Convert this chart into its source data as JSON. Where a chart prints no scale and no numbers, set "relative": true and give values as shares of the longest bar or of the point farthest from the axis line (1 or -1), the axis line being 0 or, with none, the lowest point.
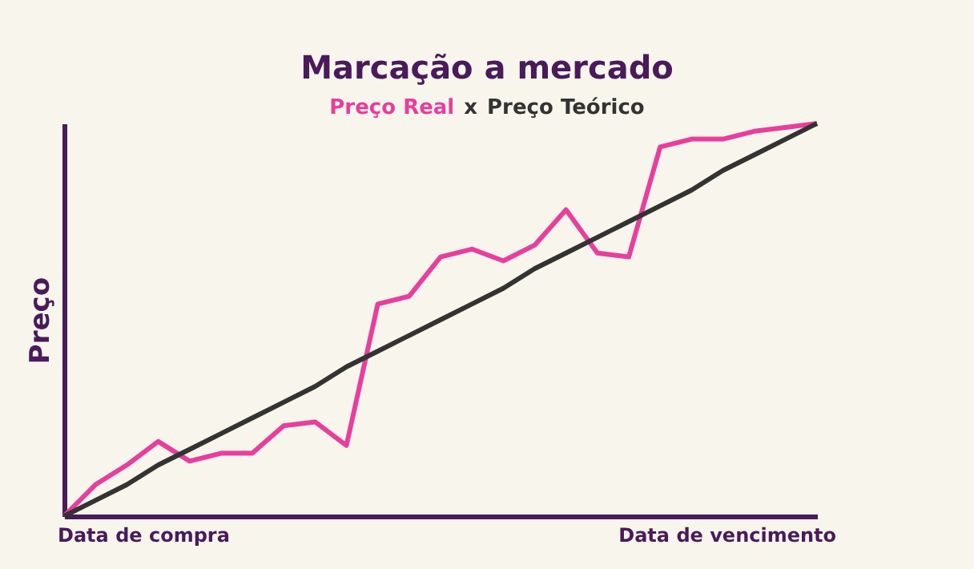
{
  "chart_data": {
    "type": "line",
    "title": "Marcação a mercado",
    "annotations": [
      "x",
      "Data de compra",
      "Data de vencimento"
    ],
    "ylabel": "Preço",
    "relative": true,
    "grid": false,
    "marker": "none",
    "line_style": "solid",
    "categories": [
      null,
      null,
      null,
      null,
      null,
      null,
      null,
      null,
      null,
      null,
      null,
      null,
      null,
      null,
      null,
      null,
      null,
      null,
      null,
      null,
      null,
      null,
      null,
      null,
      null
    ],
    "series": [
      {
        "name": "Preço Real",
        "color": "#e83e9c",
        "values": [
          0,
          0.08,
          0.13,
          0.19,
          0.14,
          0.16,
          0.16,
          0.23,
          0.24,
          0.18,
          0.54,
          0.56,
          0.66,
          0.68,
          0.65,
          0.69,
          0.78,
          0.67,
          0.66,
          0.94,
          0.96,
          0.96,
          0.98,
          0.99,
          1
        ]
      },
      {
        "name": "Preço Teórico",
        "color": "#333333",
        "values": [
          0,
          0.04,
          0.08,
          0.13,
          0.17,
          0.21,
          0.25,
          0.29,
          0.33,
          0.38,
          0.42,
          0.46,
          0.5,
          0.54,
          0.58,
          0.63,
          0.67,
          0.71,
          0.75,
          0.79,
          0.83,
          0.88,
          0.92,
          0.96,
          1
        ]
      }
    ]
  }
}
